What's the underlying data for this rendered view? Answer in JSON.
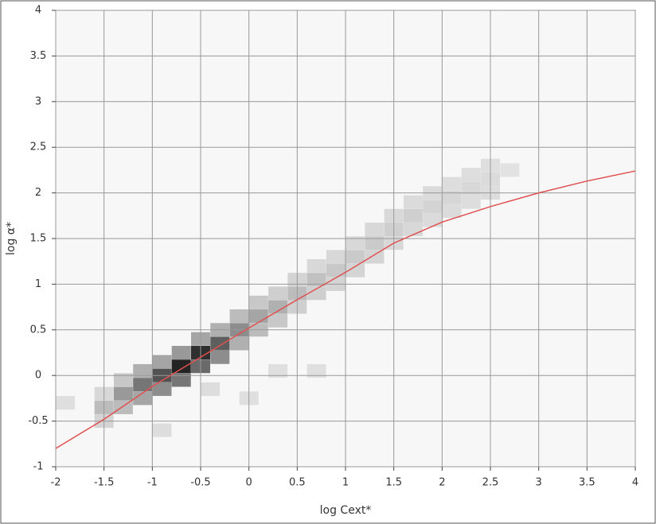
{
  "chart_data": {
    "type": "heatmap",
    "x_label": "log Cext*",
    "y_label": "log α*",
    "xlim": [
      -2,
      4
    ],
    "ylim": [
      -1,
      4
    ],
    "xticks": [
      -2,
      -1.5,
      -1,
      -0.5,
      0,
      0.5,
      1,
      1.5,
      2,
      2.5,
      3,
      3.5,
      4
    ],
    "yticks": [
      -1,
      -0.5,
      0,
      0.5,
      1,
      1.5,
      2,
      2.5,
      3,
      3.5,
      4
    ],
    "grid": true,
    "cells": [
      [
        -1.5,
        -0.5,
        10
      ],
      [
        -1.5,
        -0.35,
        20
      ],
      [
        -1.5,
        -0.2,
        8
      ],
      [
        -1.3,
        -0.35,
        20
      ],
      [
        -1.3,
        -0.2,
        35
      ],
      [
        -1.3,
        -0.05,
        15
      ],
      [
        -1.1,
        -0.25,
        30
      ],
      [
        -1.1,
        -0.1,
        50
      ],
      [
        -1.1,
        0.05,
        25
      ],
      [
        -0.9,
        -0.15,
        40
      ],
      [
        -0.9,
        0,
        65
      ],
      [
        -0.9,
        0.15,
        30
      ],
      [
        -0.7,
        -0.05,
        50
      ],
      [
        -0.7,
        0.1,
        85
      ],
      [
        -0.7,
        0.25,
        35
      ],
      [
        -0.5,
        0.1,
        55
      ],
      [
        -0.5,
        0.25,
        80
      ],
      [
        -0.5,
        0.4,
        30
      ],
      [
        -0.3,
        0.2,
        40
      ],
      [
        -0.3,
        0.35,
        60
      ],
      [
        -0.3,
        0.5,
        25
      ],
      [
        -0.1,
        0.35,
        25
      ],
      [
        -0.1,
        0.5,
        40
      ],
      [
        -0.1,
        0.65,
        20
      ],
      [
        0.1,
        0.5,
        20
      ],
      [
        0.1,
        0.65,
        30
      ],
      [
        0.1,
        0.8,
        15
      ],
      [
        0.3,
        0.6,
        15
      ],
      [
        0.3,
        0.75,
        25
      ],
      [
        0.3,
        0.9,
        12
      ],
      [
        0.5,
        0.75,
        12
      ],
      [
        0.5,
        0.9,
        20
      ],
      [
        0.5,
        1.05,
        10
      ],
      [
        0.7,
        0.9,
        12
      ],
      [
        0.7,
        1.05,
        18
      ],
      [
        0.7,
        1.2,
        8
      ],
      [
        0.9,
        1.0,
        10
      ],
      [
        0.9,
        1.15,
        15
      ],
      [
        0.9,
        1.3,
        8
      ],
      [
        1.1,
        1.15,
        10
      ],
      [
        1.1,
        1.3,
        14
      ],
      [
        1.1,
        1.45,
        8
      ],
      [
        1.3,
        1.3,
        10
      ],
      [
        1.3,
        1.45,
        14
      ],
      [
        1.3,
        1.6,
        8
      ],
      [
        1.5,
        1.45,
        8
      ],
      [
        1.5,
        1.6,
        12
      ],
      [
        1.5,
        1.75,
        8
      ],
      [
        1.7,
        1.6,
        8
      ],
      [
        1.7,
        1.75,
        12
      ],
      [
        1.7,
        1.9,
        7
      ],
      [
        1.9,
        1.7,
        7
      ],
      [
        1.9,
        1.85,
        10
      ],
      [
        1.9,
        2.0,
        7
      ],
      [
        2.1,
        1.8,
        7
      ],
      [
        2.1,
        1.95,
        9
      ],
      [
        2.1,
        2.1,
        6
      ],
      [
        2.3,
        1.9,
        6
      ],
      [
        2.3,
        2.05,
        8
      ],
      [
        2.3,
        2.2,
        6
      ],
      [
        2.5,
        2.0,
        6
      ],
      [
        2.5,
        2.15,
        7
      ],
      [
        2.5,
        2.3,
        5
      ],
      [
        2.7,
        2.25,
        4
      ],
      [
        -1.9,
        -0.3,
        5
      ],
      [
        -0.9,
        -0.6,
        6
      ],
      [
        0.0,
        -0.25,
        5
      ],
      [
        0.3,
        0.05,
        5
      ],
      [
        0.7,
        0.05,
        5
      ],
      [
        -0.4,
        -0.15,
        6
      ]
    ],
    "line": {
      "color": "#e05050",
      "x": [
        -2,
        -1.5,
        -1,
        -0.5,
        0,
        0.5,
        1,
        1.5,
        2,
        2.5,
        3,
        3.5,
        4
      ],
      "values": [
        -0.8,
        -0.48,
        -0.12,
        0.2,
        0.52,
        0.83,
        1.13,
        1.45,
        1.68,
        1.85,
        2.0,
        2.13,
        2.24
      ]
    }
  }
}
